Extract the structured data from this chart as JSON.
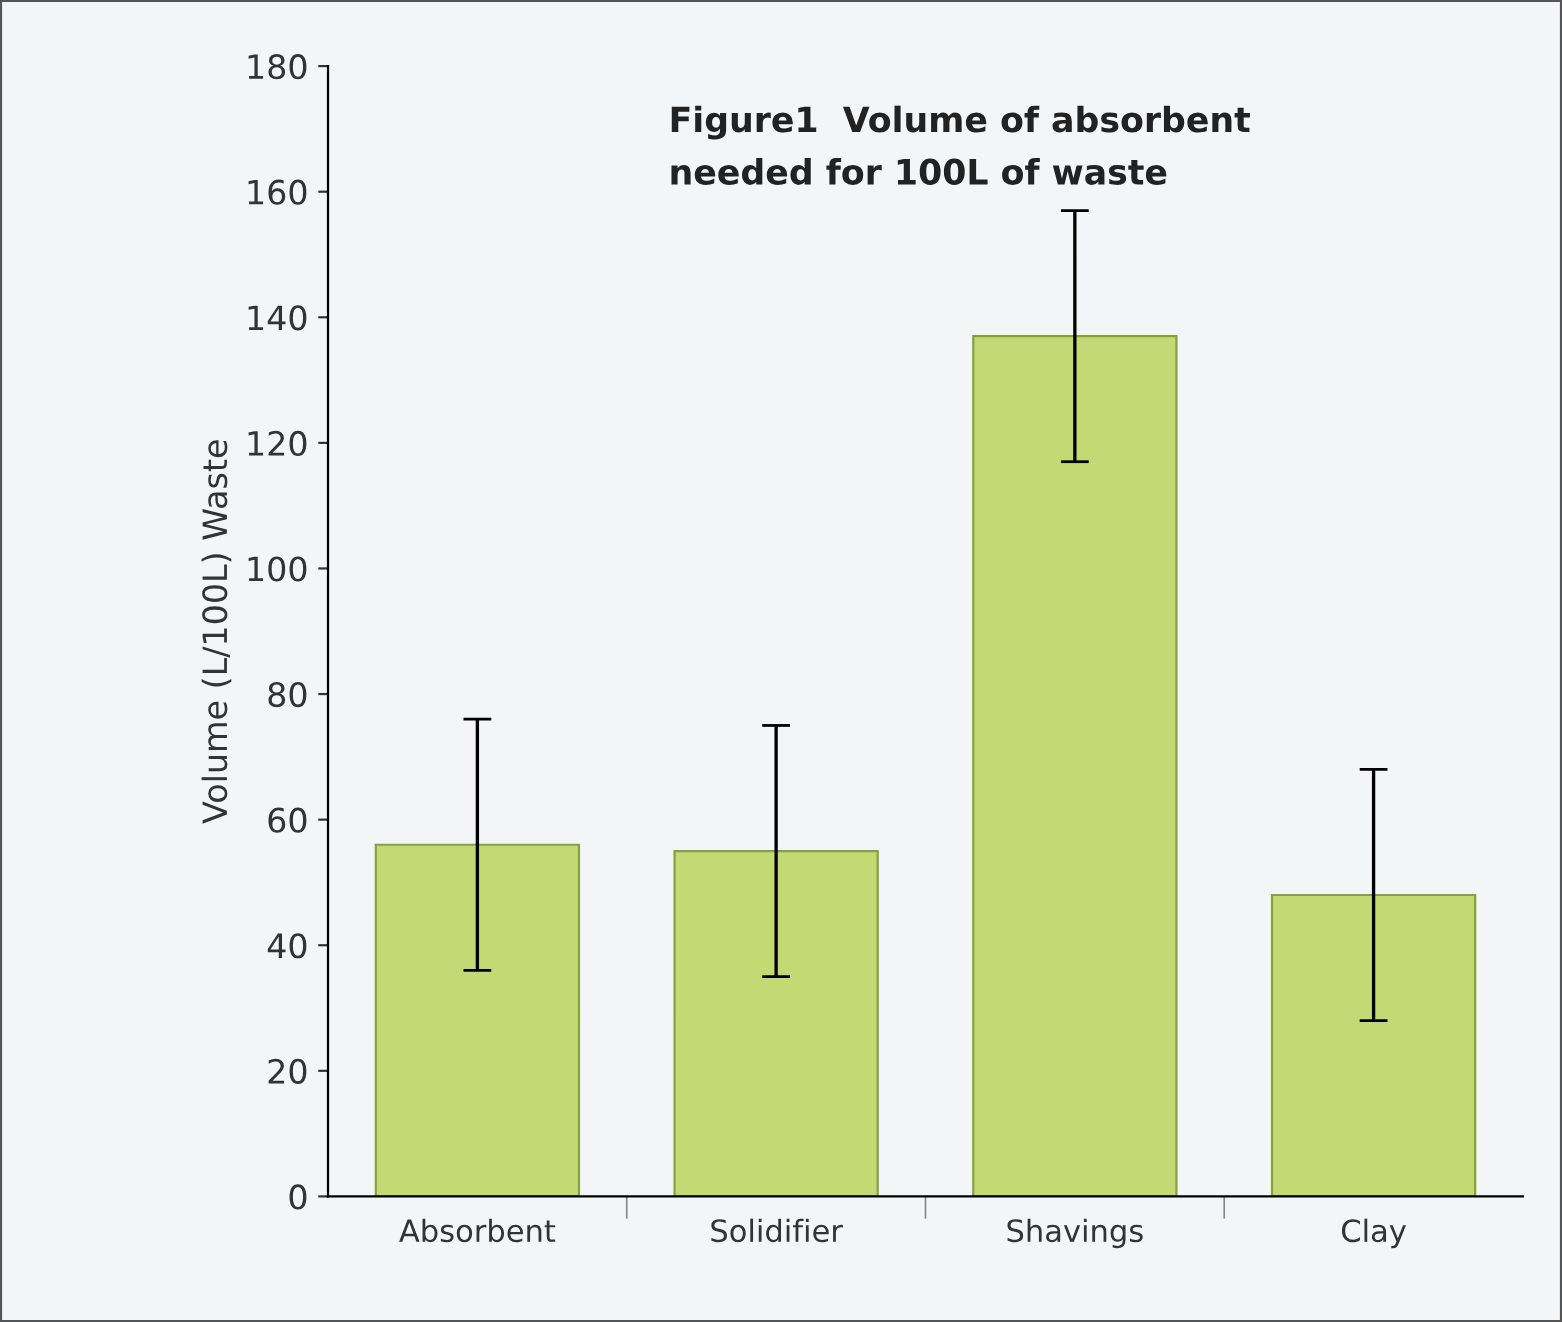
{
  "chart_data": {
    "type": "bar",
    "title": "Figure1  Volume of absorbent\nneeded for 100L of waste",
    "ylabel": "Volume (L/100L) Waste",
    "categories": [
      "Absorbent",
      "Solidifier",
      "Shavings",
      "Clay"
    ],
    "values": [
      56,
      55,
      137,
      48
    ],
    "errors": [
      20,
      20,
      20,
      20
    ],
    "color": "#c3da74",
    "ylim": [
      0,
      180
    ],
    "yticks": [
      0,
      20,
      40,
      60,
      80,
      100,
      120,
      140,
      160,
      180
    ],
    "grid": false,
    "legend": false
  }
}
